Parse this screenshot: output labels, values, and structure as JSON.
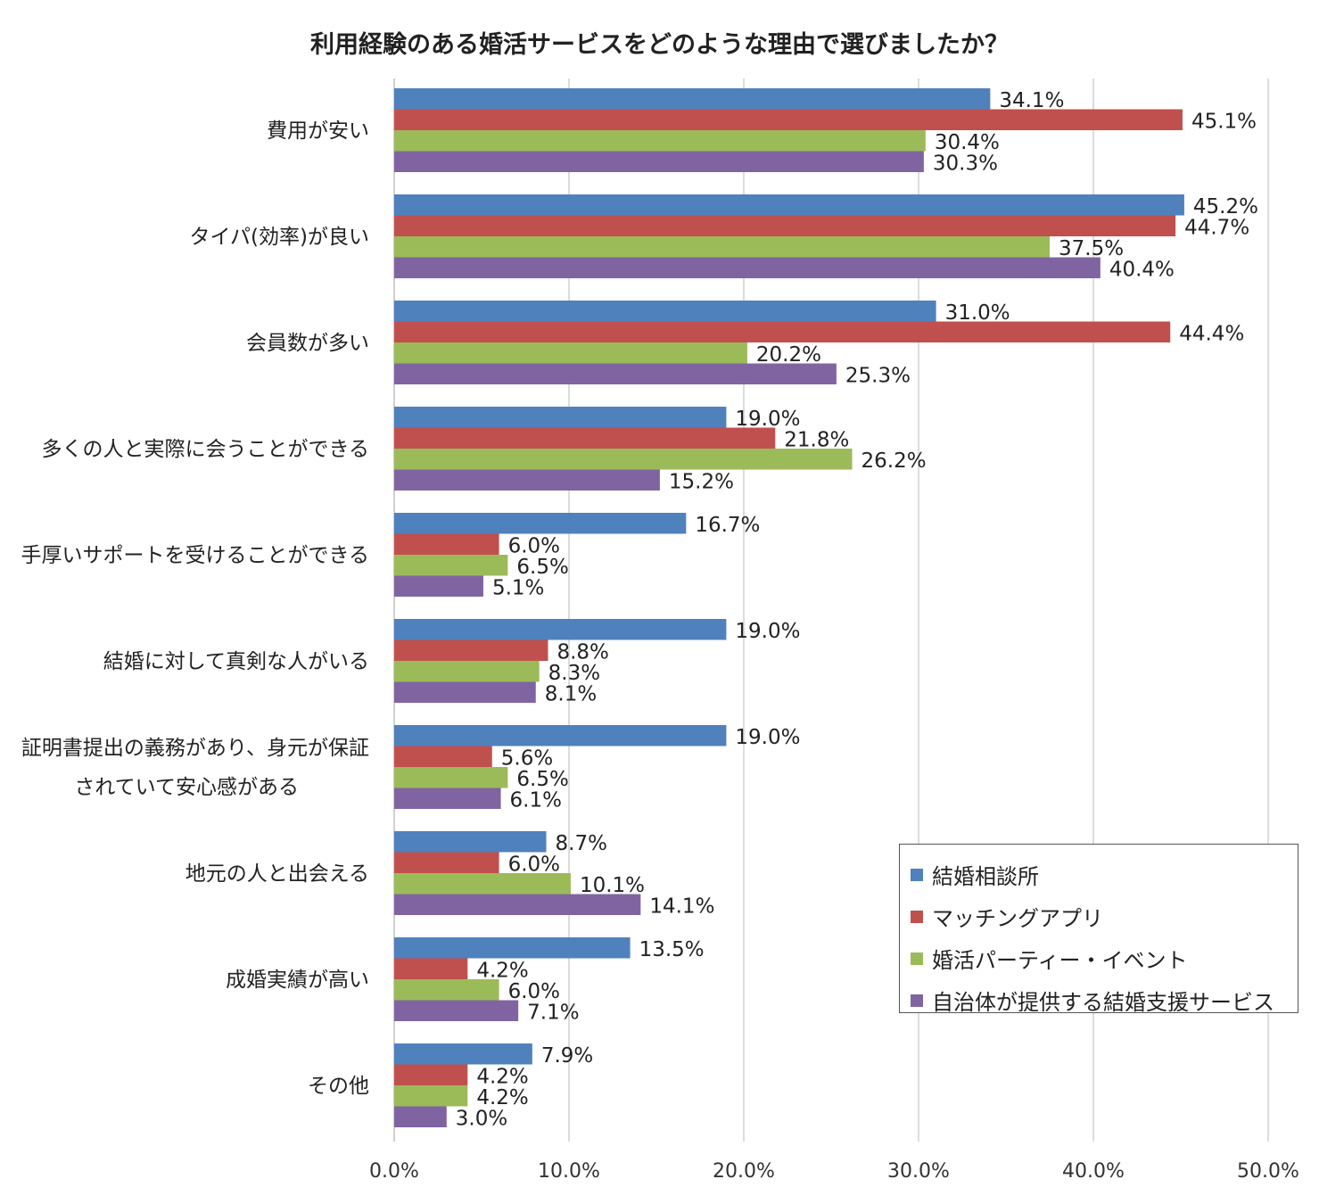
{
  "chart_data": {
    "type": "bar",
    "orientation": "horizontal",
    "title": "利用経験のある婚活サービスをどのような理由で選びましたか？",
    "xlabel": "",
    "ylabel": "",
    "xlim": [
      0,
      50
    ],
    "xticks": [
      "0.0%",
      "10.0%",
      "20.0%",
      "30.0%",
      "40.0%",
      "50.0%"
    ],
    "grid": "vertical",
    "legend_position": "bottom-right",
    "categories": [
      [
        "費用が安い"
      ],
      [
        "タイパ(効率)が良い"
      ],
      [
        "会員数が多い"
      ],
      [
        "多くの人と実際に会うことができる"
      ],
      [
        "手厚いサポートを受けることができる"
      ],
      [
        "結婚に対して真剣な人がいる"
      ],
      [
        "証明書提出の義務があり、身元が保証",
        "されていて安心感がある"
      ],
      [
        "地元の人と出会える"
      ],
      [
        "成婚実績が高い"
      ],
      [
        "その他"
      ]
    ],
    "series": [
      {
        "name": "結婚相談所",
        "color": "#4f81bd",
        "values": [
          34.1,
          45.2,
          31.0,
          19.0,
          16.7,
          19.0,
          19.0,
          8.7,
          13.5,
          7.9
        ]
      },
      {
        "name": "マッチングアプリ",
        "color": "#c0504d",
        "values": [
          45.1,
          44.7,
          44.4,
          21.8,
          6.0,
          8.8,
          5.6,
          6.0,
          4.2,
          4.2
        ]
      },
      {
        "name": "婚活パーティー・イベント",
        "color": "#9bbb59",
        "values": [
          30.4,
          37.5,
          20.2,
          26.2,
          6.5,
          8.3,
          6.5,
          10.1,
          6.0,
          4.2
        ]
      },
      {
        "name": "自治体が提供する結婚支援サービス",
        "color": "#8064a2",
        "values": [
          30.3,
          40.4,
          25.3,
          15.2,
          5.1,
          8.1,
          6.1,
          14.1,
          7.1,
          3.0
        ]
      }
    ],
    "value_suffix": "%"
  }
}
